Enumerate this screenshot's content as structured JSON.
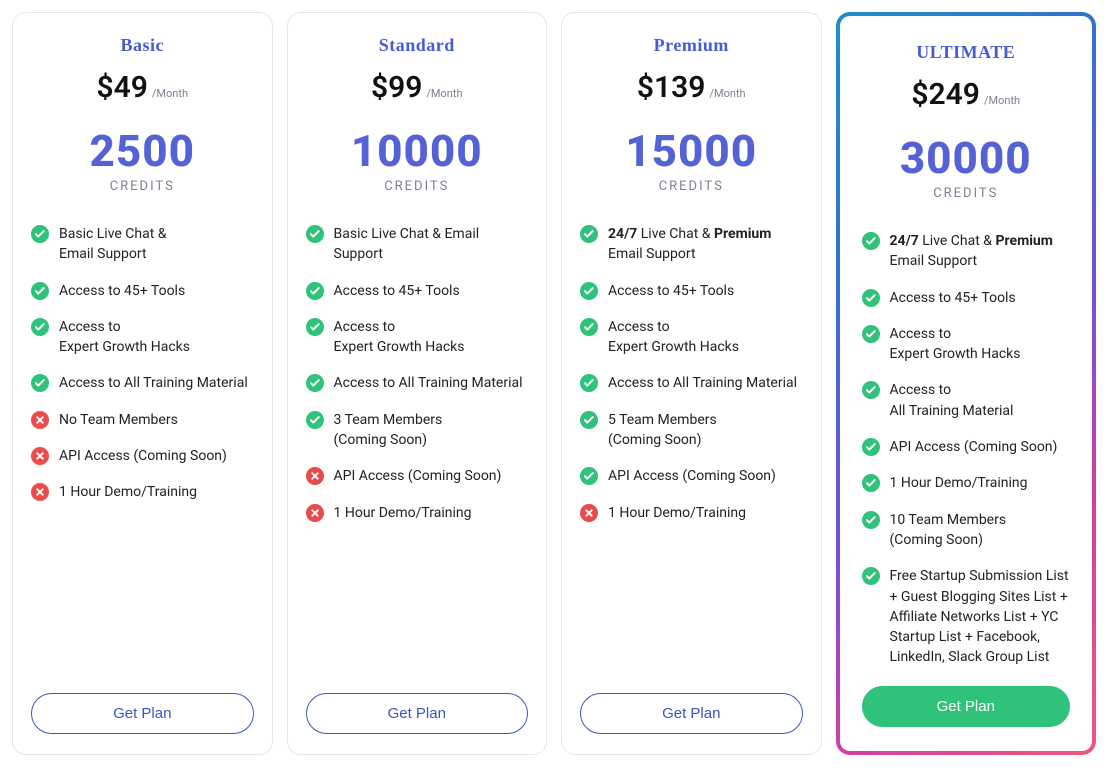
{
  "colors": {
    "title": "#475bd8",
    "credits": "#5562d6",
    "muted": "#7a8290",
    "check": "#2fc27a",
    "cross": "#e94b4b",
    "btn_outline": "#3c53c7",
    "btn_primary_bg": "#2fc27a",
    "gradient_border": [
      "#1e90c7",
      "#2f73d1",
      "#7a4ed6",
      "#d63ea4",
      "#f0567a"
    ],
    "card_border": "#e2e6ea"
  },
  "typography": {
    "title_fontsize": 18,
    "price_fontsize": 30,
    "credits_fontsize": 44,
    "feature_fontsize": 14,
    "btn_fontsize": 15
  },
  "plans": [
    {
      "name": "Basic",
      "price": "$49",
      "period": "/Month",
      "credits": "2500",
      "credits_label": "CREDITS",
      "cta": "Get Plan",
      "highlight": false,
      "cta_variant": "outline",
      "features": [
        {
          "ok": true,
          "html": "Basic Live Chat & Email&nbsp;Support"
        },
        {
          "ok": true,
          "html": "Access to 45+ Tools"
        },
        {
          "ok": true,
          "html": "Access to Expert&nbsp;Growth&nbsp;Hacks"
        },
        {
          "ok": true,
          "html": "Access to All Training Material"
        },
        {
          "ok": false,
          "html": "No Team Members"
        },
        {
          "ok": false,
          "html": "API Access (Coming&nbsp;Soon)"
        },
        {
          "ok": false,
          "html": "1 Hour Demo/Training"
        }
      ]
    },
    {
      "name": "Standard",
      "price": "$99",
      "period": "/Month",
      "credits": "10000",
      "credits_label": "CREDITS",
      "cta": "Get Plan",
      "highlight": false,
      "cta_variant": "outline",
      "features": [
        {
          "ok": true,
          "html": "Basic Live Chat & Email Support"
        },
        {
          "ok": true,
          "html": "Access to 45+ Tools"
        },
        {
          "ok": true,
          "html": "Access to Expert&nbsp;Growth&nbsp;Hacks"
        },
        {
          "ok": true,
          "html": "Access to All&nbsp;Training&nbsp;Material"
        },
        {
          "ok": true,
          "html": "3 Team Members (Coming&nbsp;Soon)"
        },
        {
          "ok": false,
          "html": "API Access (Coming&nbsp;Soon)"
        },
        {
          "ok": false,
          "html": "1 Hour Demo/Training"
        }
      ]
    },
    {
      "name": "Premium",
      "price": "$139",
      "period": "/Month",
      "credits": "15000",
      "credits_label": "CREDITS",
      "cta": "Get Plan",
      "highlight": false,
      "cta_variant": "outline",
      "features": [
        {
          "ok": true,
          "html": "<b>24/7</b> Live Chat & <b>Premium</b> Email Support"
        },
        {
          "ok": true,
          "html": "Access to 45+ Tools"
        },
        {
          "ok": true,
          "html": "Access to Expert&nbsp;Growth&nbsp;Hacks"
        },
        {
          "ok": true,
          "html": "Access to All&nbsp;Training&nbsp;Material"
        },
        {
          "ok": true,
          "html": "5 Team Members (Coming&nbsp;Soon)"
        },
        {
          "ok": true,
          "html": "API Access (Coming&nbsp;Soon)"
        },
        {
          "ok": false,
          "html": "1 Hour Demo/Training"
        }
      ]
    },
    {
      "name": "ULTIMATE",
      "price": "$249",
      "period": "/Month",
      "credits": "30000",
      "credits_label": "CREDITS",
      "cta": "Get Plan",
      "highlight": true,
      "cta_variant": "primary",
      "features": [
        {
          "ok": true,
          "html": "<b>24/7</b> Live Chat & <b>Premium</b> Email Support"
        },
        {
          "ok": true,
          "html": "Access to 45+ Tools"
        },
        {
          "ok": true,
          "html": "Access to Expert&nbsp;Growth&nbsp;Hacks"
        },
        {
          "ok": true,
          "html": "Access to All&nbsp;Training&nbsp;Material"
        },
        {
          "ok": true,
          "html": "API Access (Coming&nbsp;Soon)"
        },
        {
          "ok": true,
          "html": "1 Hour Demo/Training"
        },
        {
          "ok": true,
          "html": "10 Team Members (Coming&nbsp;Soon)"
        },
        {
          "ok": true,
          "html": "Free Startup Submission List + Guest Blogging Sites List + Affiliate Networks List + YC Startup List + Facebook, LinkedIn, Slack Group List"
        }
      ]
    }
  ]
}
